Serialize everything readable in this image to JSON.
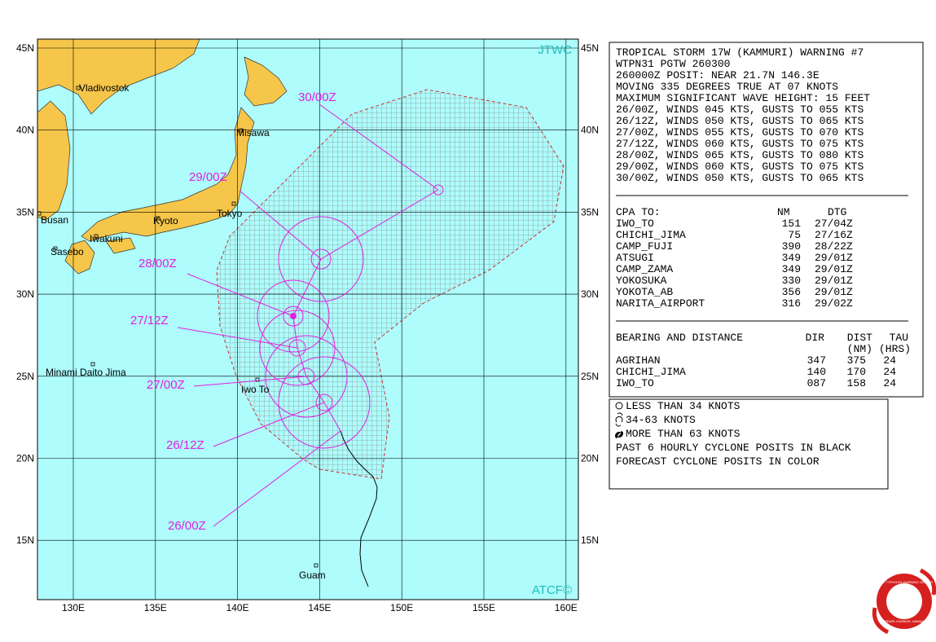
{
  "map": {
    "lat_labels": [
      "45N",
      "40N",
      "35N",
      "30N",
      "25N",
      "20N",
      "15N"
    ],
    "lon_labels": [
      "130E",
      "135E",
      "140E",
      "145E",
      "150E",
      "155E",
      "160E"
    ],
    "source_top": "JTWC",
    "source_bottom": "ATCF©",
    "places": [
      "Vladivostok",
      "Misawa",
      "Busan",
      "Kyoto",
      "Tokyo",
      "Iwakuni",
      "Sasebo",
      "Minami Daito Jima",
      "Iwo To",
      "Guam"
    ],
    "forecast_times": [
      "30/00Z",
      "29/00Z",
      "28/00Z",
      "27/12Z",
      "27/00Z",
      "26/12Z",
      "26/00Z"
    ]
  },
  "warning": {
    "header_lines": [
      "TROPICAL STORM 17W (KAMMURI) WARNING #7",
      "WTPN31 PGTW 260300",
      "260000Z POSIT: NEAR 21.7N 146.3E",
      "MOVING 335 DEGREES TRUE AT 07 KNOTS",
      "MAXIMUM SIGNIFICANT WAVE HEIGHT: 15 FEET",
      "26/00Z, WINDS 045 KTS, GUSTS TO 055 KTS",
      "26/12Z, WINDS 050 KTS, GUSTS TO 065 KTS",
      "27/00Z, WINDS 055 KTS, GUSTS TO 070 KTS",
      "27/12Z, WINDS 060 KTS, GUSTS TO 075 KTS",
      "28/00Z, WINDS 065 KTS, GUSTS TO 080 KTS",
      "29/00Z, WINDS 060 KTS, GUSTS TO 075 KTS",
      "30/00Z, WINDS 050 KTS, GUSTS TO 065 KTS"
    ],
    "cpa": {
      "headers": [
        "CPA TO:",
        "NM",
        "DTG"
      ],
      "rows": [
        [
          "IWO_TO",
          "151",
          "27/04Z"
        ],
        [
          "CHICHI_JIMA",
          "75",
          "27/16Z"
        ],
        [
          "CAMP_FUJI",
          "390",
          "28/22Z"
        ],
        [
          "ATSUGI",
          "349",
          "29/01Z"
        ],
        [
          "CAMP_ZAMA",
          "349",
          "29/01Z"
        ],
        [
          "YOKOSUKA",
          "330",
          "29/01Z"
        ],
        [
          "YOKOTA_AB",
          "356",
          "29/01Z"
        ],
        [
          "NARITA_AIRPORT",
          "316",
          "29/02Z"
        ]
      ]
    },
    "bearing": {
      "headers": [
        "BEARING AND DISTANCE",
        "DIR",
        "DIST",
        "TAU"
      ],
      "subheaders": [
        "(NM)",
        "(HRS)"
      ],
      "rows": [
        [
          "AGRIHAN",
          "347",
          "375",
          "24"
        ],
        [
          "CHICHI_JIMA",
          "140",
          "170",
          "24"
        ],
        [
          "IWO_TO",
          "087",
          "158",
          "24"
        ]
      ]
    }
  },
  "legend": {
    "lines": [
      "LESS THAN 34 KNOTS",
      "34-63 KNOTS",
      "MORE THAN 63 KNOTS",
      "PAST 6 HOURLY CYCLONE POSITS IN BLACK",
      "FORECAST CYCLONE POSITS IN COLOR"
    ]
  },
  "logo": {
    "top": "JOINT TYPHOON WARNING CENTER",
    "bottom": "PEARL HARBOR, HAWAII"
  }
}
